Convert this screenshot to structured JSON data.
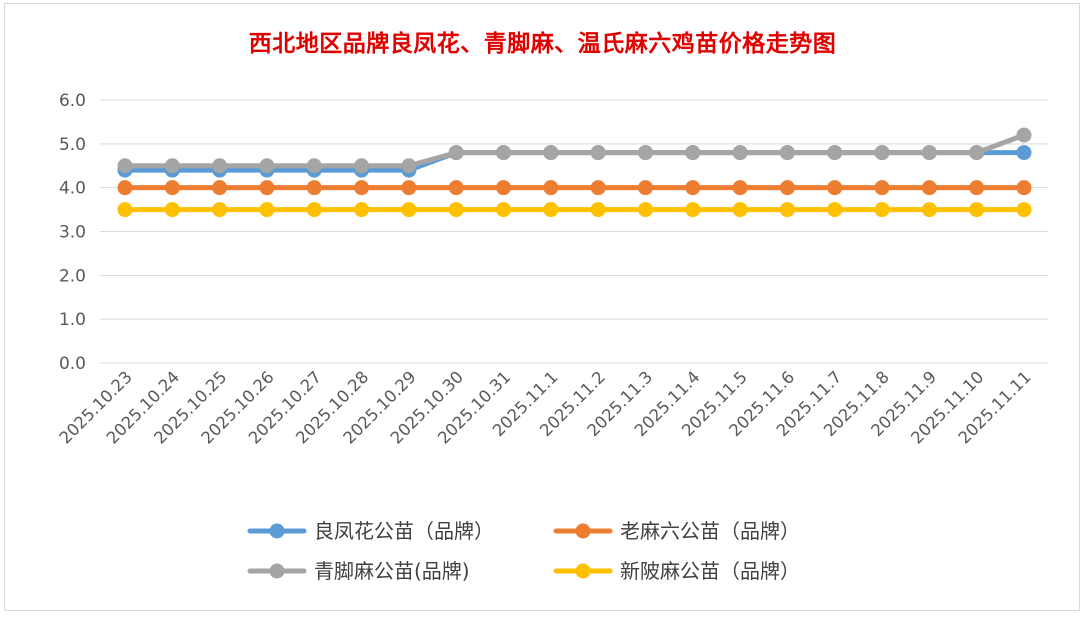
{
  "chart_data": {
    "type": "line",
    "title": "西北地区品牌良凤花、青脚麻、温氏麻六鸡苗价格走势图",
    "categories": [
      "2025.10.23",
      "2025.10.24",
      "2025.10.25",
      "2025.10.26",
      "2025.10.27",
      "2025.10.28",
      "2025.10.29",
      "2025.10.30",
      "2025.10.31",
      "2025.11.1",
      "2025.11.2",
      "2025.11.3",
      "2025.11.4",
      "2025.11.5",
      "2025.11.6",
      "2025.11.7",
      "2025.11.8",
      "2025.11.9",
      "2025.11.10",
      "2025.11.11"
    ],
    "ylim": [
      0,
      6
    ],
    "yticks": [
      "0.0",
      "1.0",
      "2.0",
      "3.0",
      "4.0",
      "5.0",
      "6.0"
    ],
    "grid": true,
    "legend_position": "bottom",
    "series": [
      {
        "name": "良凤花公苗（品牌）",
        "color": "#5b9bd5",
        "values": [
          4.4,
          4.4,
          4.4,
          4.4,
          4.4,
          4.4,
          4.4,
          4.8,
          4.8,
          4.8,
          4.8,
          4.8,
          4.8,
          4.8,
          4.8,
          4.8,
          4.8,
          4.8,
          4.8,
          4.8
        ]
      },
      {
        "name": "老麻六公苗（品牌）",
        "color": "#ed7d31",
        "values": [
          4.0,
          4.0,
          4.0,
          4.0,
          4.0,
          4.0,
          4.0,
          4.0,
          4.0,
          4.0,
          4.0,
          4.0,
          4.0,
          4.0,
          4.0,
          4.0,
          4.0,
          4.0,
          4.0,
          4.0
        ]
      },
      {
        "name": "青脚麻公苗(品牌)",
        "color": "#a5a5a5",
        "values": [
          4.5,
          4.5,
          4.5,
          4.5,
          4.5,
          4.5,
          4.5,
          4.8,
          4.8,
          4.8,
          4.8,
          4.8,
          4.8,
          4.8,
          4.8,
          4.8,
          4.8,
          4.8,
          4.8,
          5.2
        ]
      },
      {
        "name": "新陂麻公苗（品牌）",
        "color": "#ffc000",
        "values": [
          3.5,
          3.5,
          3.5,
          3.5,
          3.5,
          3.5,
          3.5,
          3.5,
          3.5,
          3.5,
          3.5,
          3.5,
          3.5,
          3.5,
          3.5,
          3.5,
          3.5,
          3.5,
          3.5,
          3.5
        ]
      }
    ]
  }
}
